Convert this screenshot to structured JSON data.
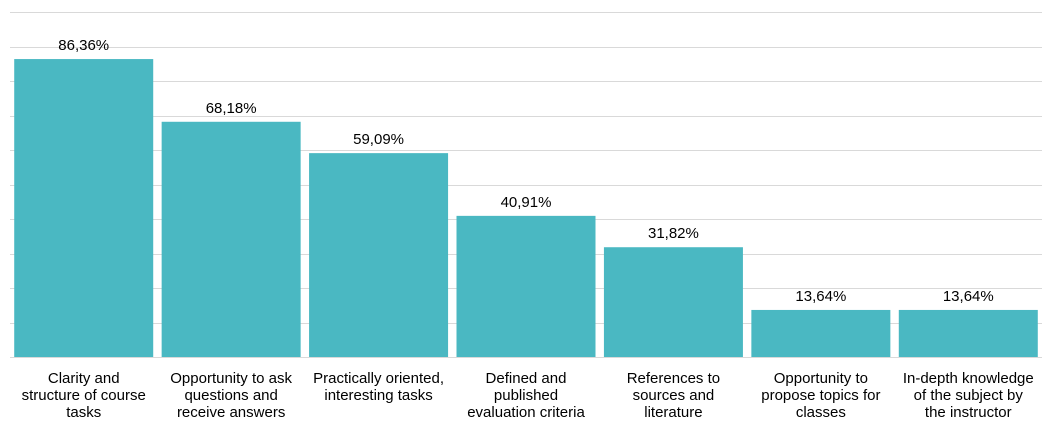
{
  "colors": {
    "bar": "#4ab8c2",
    "grid": "#d9d9d9",
    "text": "#000000"
  },
  "chart_data": {
    "type": "bar",
    "title": "",
    "xlabel": "",
    "ylabel": "",
    "ylim": [
      0,
      100
    ],
    "grid": true,
    "legend": "none",
    "categories": [
      "Clarity and structure of course tasks",
      "Opportunity to ask questions and receive answers",
      "Practically oriented, interesting tasks",
      "Defined and published evaluation criteria",
      "References to sources and literature",
      "Opportunity to propose topics for classes",
      "In-depth knowledge of the subject by the instructor"
    ],
    "category_lines": [
      [
        "Clarity and",
        "structure of course",
        "tasks"
      ],
      [
        "Opportunity to ask",
        "questions and",
        "receive answers"
      ],
      [
        "Practically oriented,",
        "interesting tasks"
      ],
      [
        "Defined and",
        "published",
        "evaluation criteria"
      ],
      [
        "References to",
        "sources and",
        "literature"
      ],
      [
        "Opportunity to",
        "propose topics for",
        "classes"
      ],
      [
        "In-depth knowledge",
        "of the subject by",
        "the instructor"
      ]
    ],
    "values": [
      86.36,
      68.18,
      59.09,
      40.91,
      31.82,
      13.64,
      13.64
    ],
    "value_labels": [
      "86,36%",
      "68,18%",
      "59,09%",
      "40,91%",
      "31,82%",
      "13,64%",
      "13,64%"
    ]
  }
}
